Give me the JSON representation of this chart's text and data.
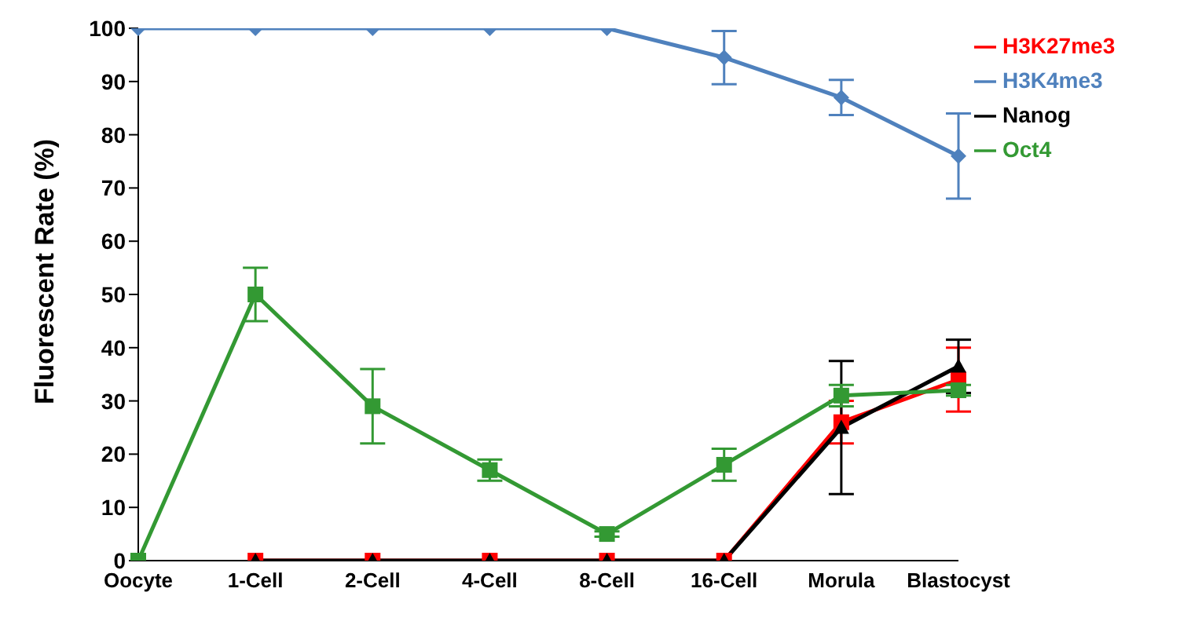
{
  "chart_data": {
    "type": "line",
    "ylabel": "Fluorescent Rate (%)",
    "categories": [
      "Oocyte",
      "1-Cell",
      "2-Cell",
      "4-Cell",
      "8-Cell",
      "16-Cell",
      "Morula",
      "Blastocyst"
    ],
    "series": [
      {
        "name": "H3K4me3",
        "color": "#4f81bd",
        "marker": "diamond",
        "values": [
          100,
          100,
          100,
          100,
          100,
          94.5,
          87,
          76
        ],
        "errors": [
          null,
          null,
          null,
          null,
          null,
          5,
          3.3,
          8
        ]
      },
      {
        "name": "H3K27me3",
        "color": "#ff0000",
        "marker": "square",
        "values": [
          null,
          0,
          0,
          0,
          0,
          0,
          26,
          34
        ],
        "errors": [
          null,
          null,
          null,
          null,
          null,
          null,
          4,
          6
        ]
      },
      {
        "name": "Nanog",
        "color": "#000000",
        "marker": "triangle",
        "values": [
          null,
          0,
          0,
          0,
          0,
          0,
          25,
          36.5
        ],
        "errors": [
          null,
          null,
          null,
          null,
          null,
          null,
          12.5,
          5
        ]
      },
      {
        "name": "Oct4",
        "color": "#339933",
        "marker": "square",
        "values": [
          0,
          50,
          29,
          17,
          5,
          18,
          31,
          32
        ],
        "errors": [
          null,
          5,
          7,
          2,
          0.5,
          3,
          2,
          1
        ]
      }
    ],
    "ylim": [
      0,
      100
    ],
    "yticks": [
      0,
      10,
      20,
      30,
      40,
      50,
      60,
      70,
      80,
      90,
      100
    ],
    "grid": false,
    "legend": "top right"
  }
}
